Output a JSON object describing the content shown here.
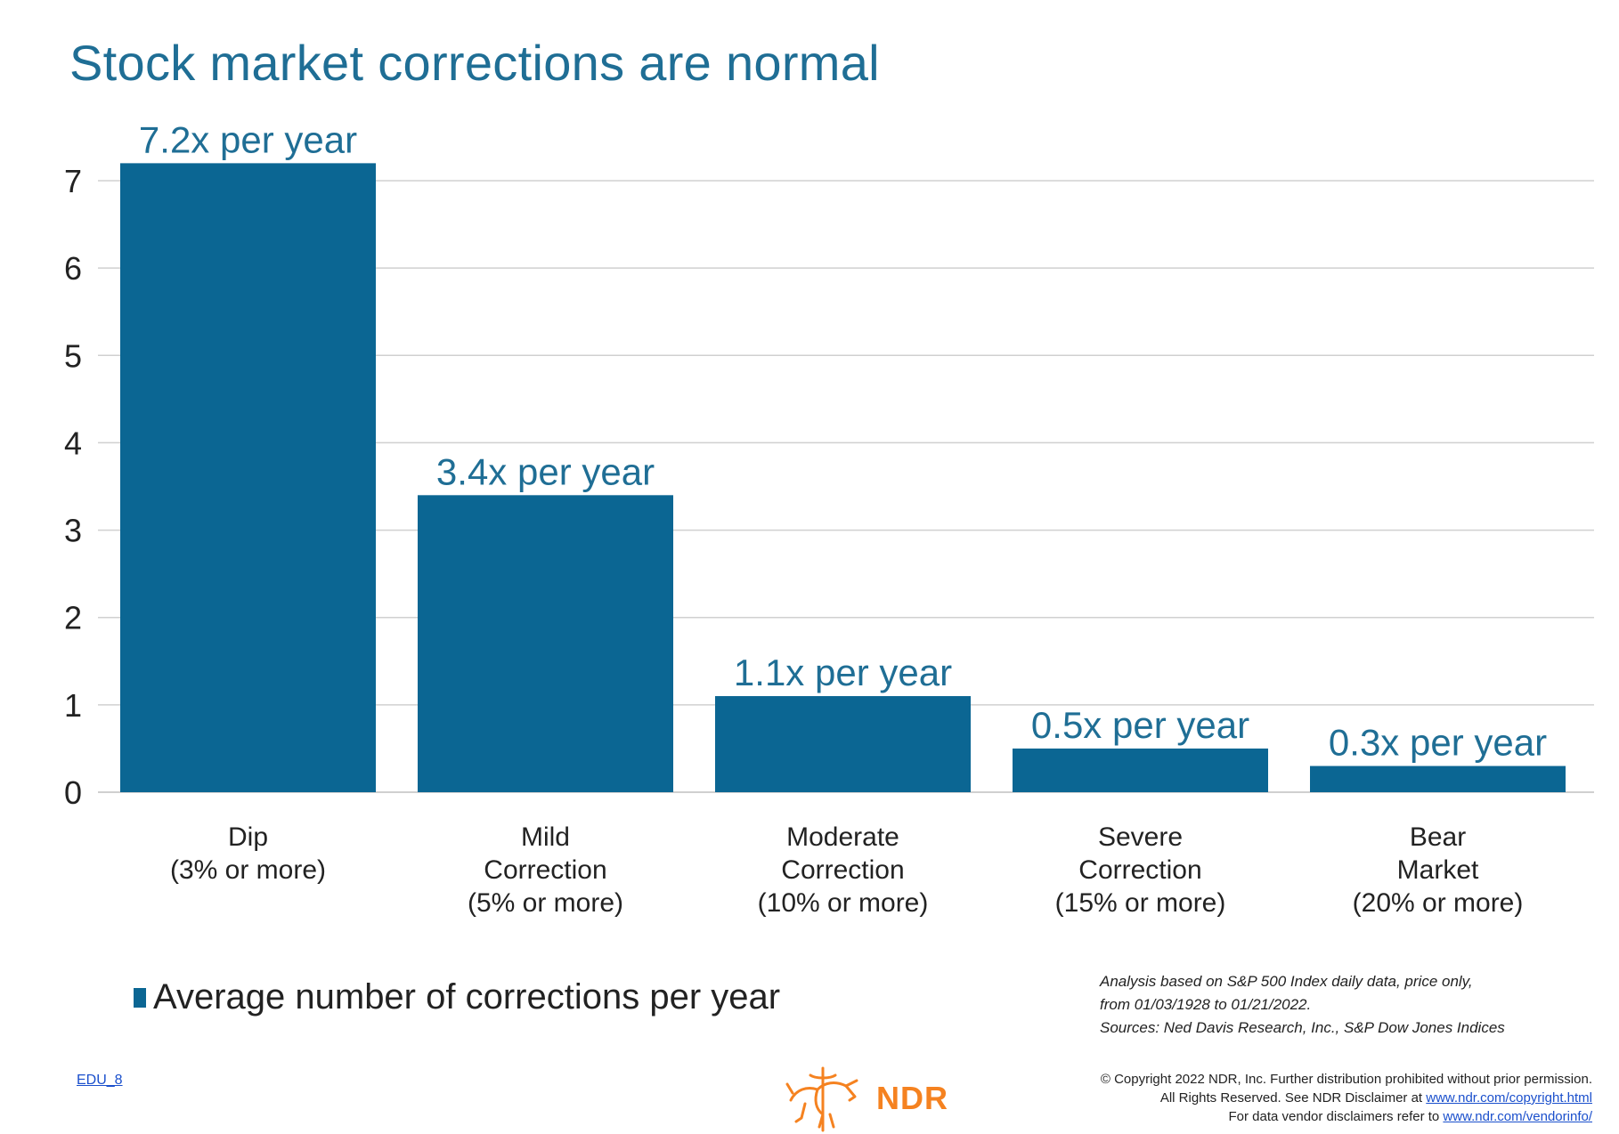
{
  "chart_data": {
    "type": "bar",
    "title": "Stock market corrections are normal",
    "categories": [
      [
        "Dip",
        "(3% or more)"
      ],
      [
        "Mild",
        "Correction",
        "(5% or more)"
      ],
      [
        "Moderate",
        "Correction",
        "(10% or more)"
      ],
      [
        "Severe",
        "Correction",
        "(15% or more)"
      ],
      [
        "Bear",
        "Market",
        "(20% or more)"
      ]
    ],
    "series": [
      {
        "name": "Average number of corrections per year",
        "values": [
          7.2,
          3.4,
          1.1,
          0.5,
          0.3
        ],
        "data_labels": [
          "7.2x per year",
          "3.4x per year",
          "1.1x per year",
          "0.5x per year",
          "0.3x per year"
        ]
      }
    ],
    "yticks": [
      "0",
      "1",
      "2",
      "3",
      "4",
      "5",
      "6",
      "7"
    ],
    "ylim": [
      0,
      7
    ],
    "grid": true,
    "legend_position": "bottom-left",
    "bar_color": "#0b6693",
    "title_color": "#1f6e95",
    "gridline_color": "#d0d0d0"
  },
  "notes": {
    "analysis_lines": [
      "Analysis based on S&P 500 Index daily data, price only,",
      "from 01/03/1928 to 01/21/2022.",
      "Sources: Ned Davis Research, Inc., S&P Dow Jones Indices"
    ]
  },
  "footer": {
    "edu_code": "EDU_8",
    "logo_text": "NDR",
    "logo_color": "#f58220",
    "copyright_line1": "© Copyright 2022 NDR, Inc. Further distribution prohibited without prior permission.",
    "copyright_line2_prefix": "All Rights Reserved. See NDR Disclaimer at ",
    "copyright_link1": "www.ndr.com/copyright.html",
    "copyright_line3_prefix": "For data vendor disclaimers refer to ",
    "copyright_link2": "www.ndr.com/vendorinfo/"
  }
}
